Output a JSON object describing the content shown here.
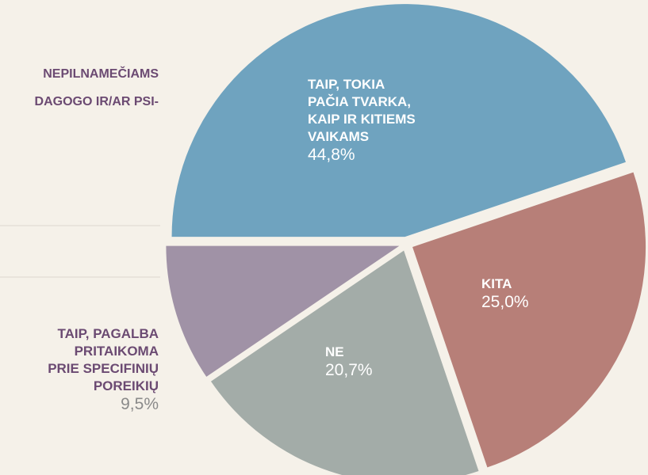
{
  "chart_data": {
    "type": "pie",
    "title_lines": [
      "NEPILNAMEČIAMS",
      "DAGOGO IR/AR PSI-"
    ],
    "categories": [
      [
        "TAIP, TOKIA",
        "PAČIA TVARKA,",
        "KAIP IR KITIEMS",
        "VAIKAMS"
      ],
      [
        "KITA"
      ],
      [
        "NE"
      ],
      [
        "TAIP, PAGALBA",
        "PRITAIKOMA",
        "PRIE SPECIFINIŲ",
        "POREIKIŲ"
      ]
    ],
    "values": [
      44.8,
      25.0,
      20.7,
      9.5
    ],
    "value_labels": [
      "44,8%",
      "25,0%",
      "20,7%",
      "9,5%"
    ],
    "colors": [
      "#6fa3bf",
      "#b77f78",
      "#a3aca8",
      "#a092a6"
    ]
  }
}
